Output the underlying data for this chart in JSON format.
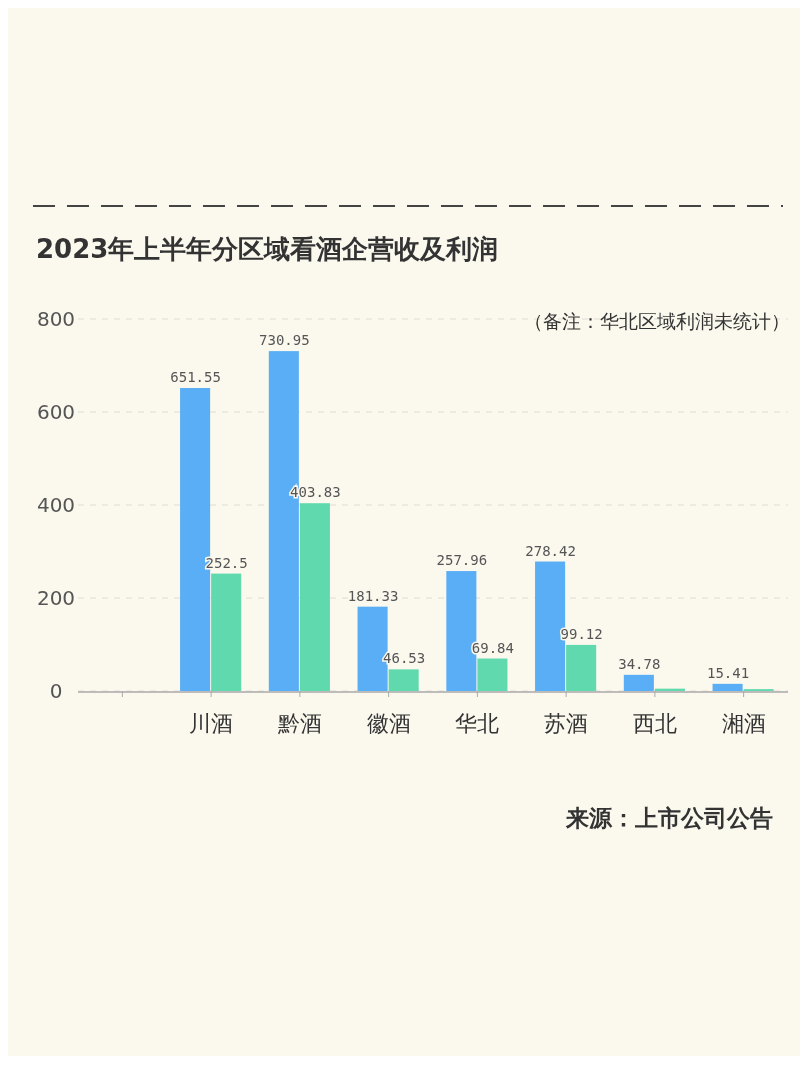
{
  "chart_data": {
    "type": "bar",
    "title": "2023年上半年分区域看酒企营收及利润",
    "annotations": [
      "（备注：华北区域利润未统计）",
      "来源：上市公司公告"
    ],
    "categories": [
      null,
      "川酒",
      "黔酒",
      "徽酒",
      "华北",
      "苏酒",
      "西北",
      "湘酒"
    ],
    "series": [
      {
        "color": "#5aaef5",
        "values": [
          null,
          651.55,
          730.95,
          181.33,
          257.96,
          278.42,
          34.78,
          15.41
        ],
        "value_labels": [
          null,
          "651.55",
          "730.95",
          "181.33",
          "257.96",
          "278.42",
          "34.78",
          "15.41"
        ]
      },
      {
        "color": "#5fd9ad",
        "values": [
          null,
          252.5,
          403.83,
          46.53,
          69.84,
          99.12,
          5,
          4
        ],
        "value_labels": [
          null,
          "252.5",
          "403.83",
          "46.53",
          "69.84",
          "99.12",
          null,
          null
        ]
      }
    ],
    "ylim": [
      0,
      800
    ],
    "yticks": [
      0,
      200,
      400,
      600,
      800
    ],
    "grid": "y",
    "legend": false
  }
}
